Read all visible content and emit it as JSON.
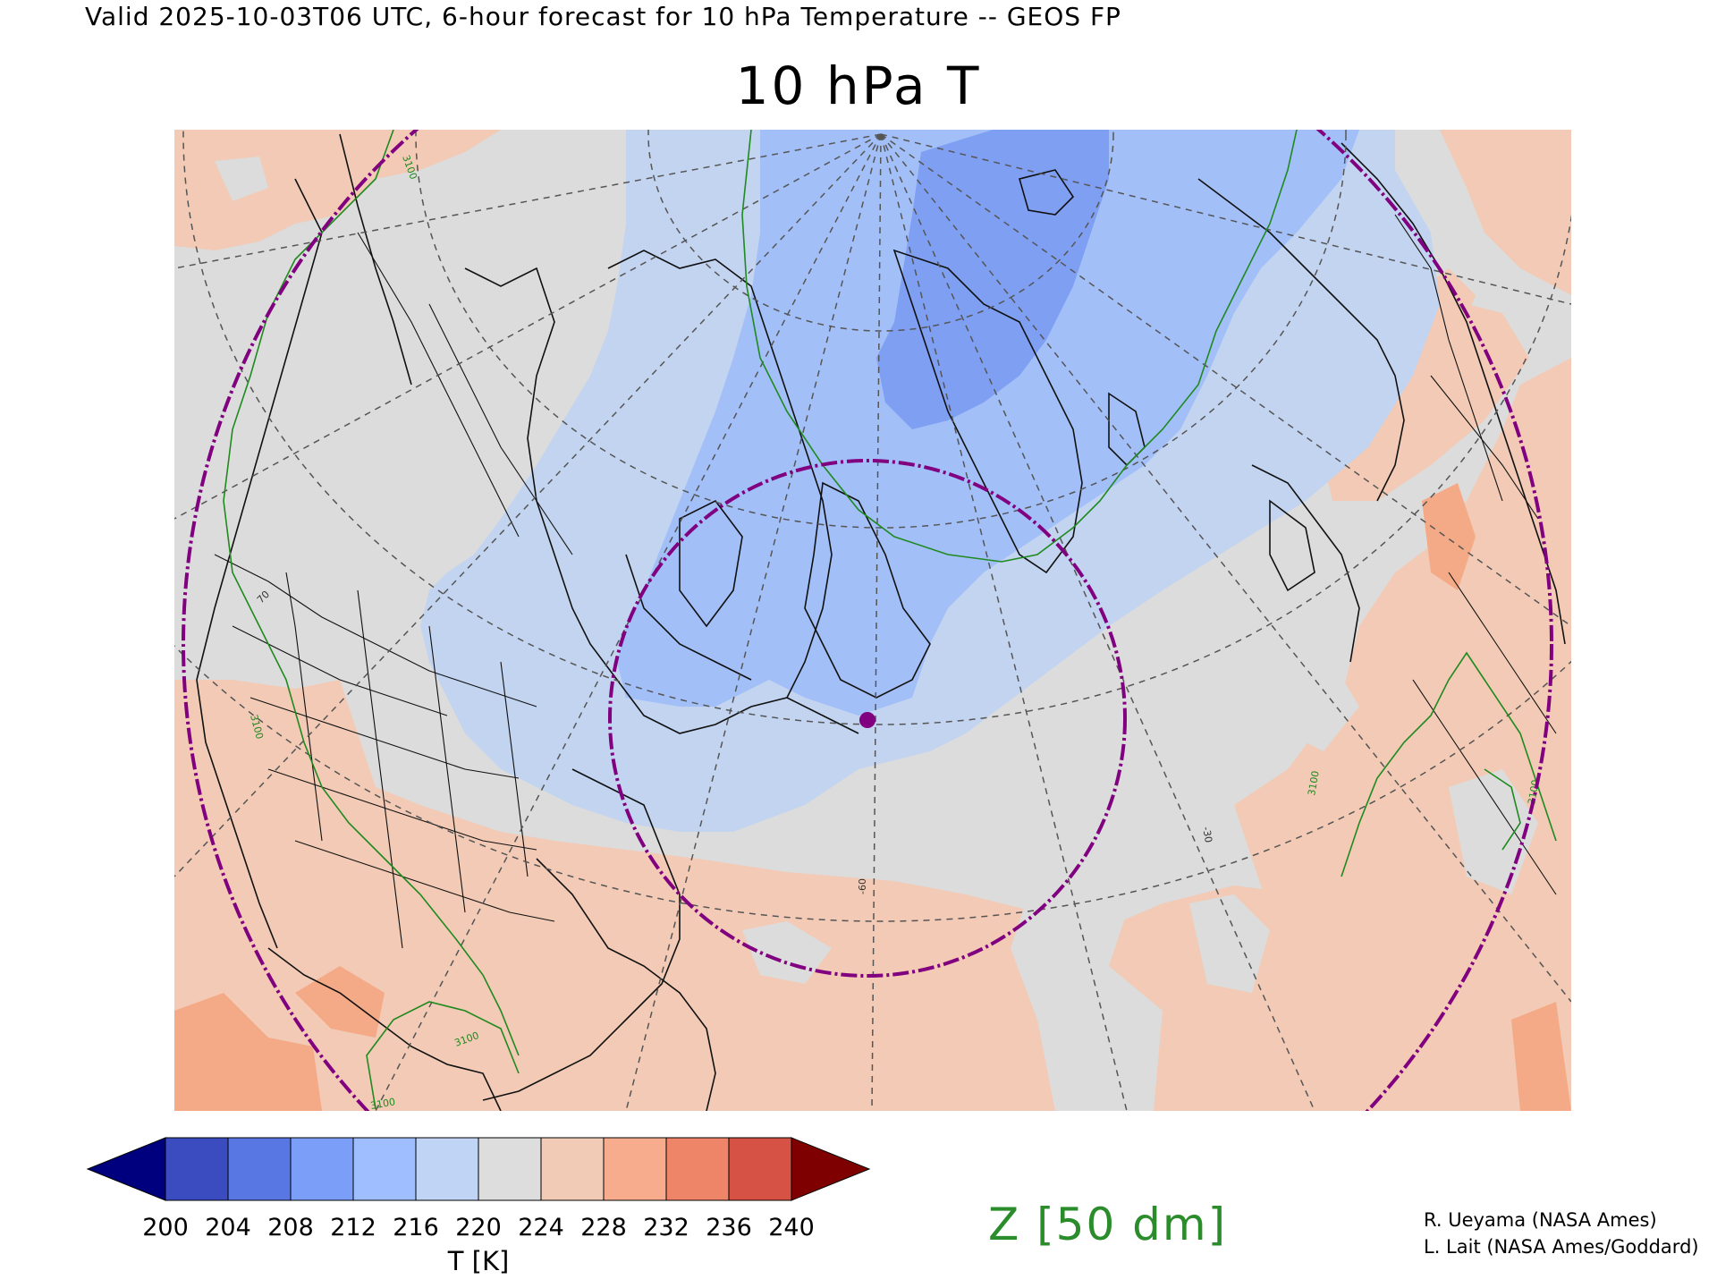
{
  "header": {
    "valid_line": "Valid 2025-10-03T06 UTC, 6-hour forecast for 10 hPa Temperature -- GEOS FP",
    "title": "10 hPa T"
  },
  "map": {
    "projection": "polar stereographic (north)",
    "field": "temperature",
    "contour_field": "geopotential height",
    "contour_labels": [
      "3100",
      "3100",
      "3100",
      "3100",
      "3100",
      "3100"
    ],
    "graticule_labels": [
      "-30",
      "-60",
      "70"
    ],
    "marker": {
      "label": "",
      "color": "#800080"
    },
    "colors": {
      "t216_220": "#c3d4f0",
      "t212_216": "#a2bff8",
      "t208_212": "#7f9ff2",
      "t220_224": "#dcdcdc",
      "t224_228": "#f2cab5",
      "t228_232": "#f4a987",
      "contour": "#1f8a1f",
      "circle": "#800080"
    }
  },
  "colorbar": {
    "ticks": [
      "200",
      "204",
      "208",
      "212",
      "216",
      "220",
      "224",
      "228",
      "232",
      "236",
      "240"
    ],
    "unit": "T [K]",
    "colors": [
      "#00007f",
      "#3b4cc0",
      "#5977e3",
      "#7b9ff9",
      "#9ebeff",
      "#c0d4f5",
      "#dddddd",
      "#f2cbb7",
      "#f7ac8e",
      "#ee8468",
      "#d65244",
      "#7f0000"
    ]
  },
  "contour_legend": "Z [50 dm]",
  "credits": [
    "R. Ueyama (NASA Ames)",
    "L. Lait (NASA Ames/Goddard)"
  ]
}
